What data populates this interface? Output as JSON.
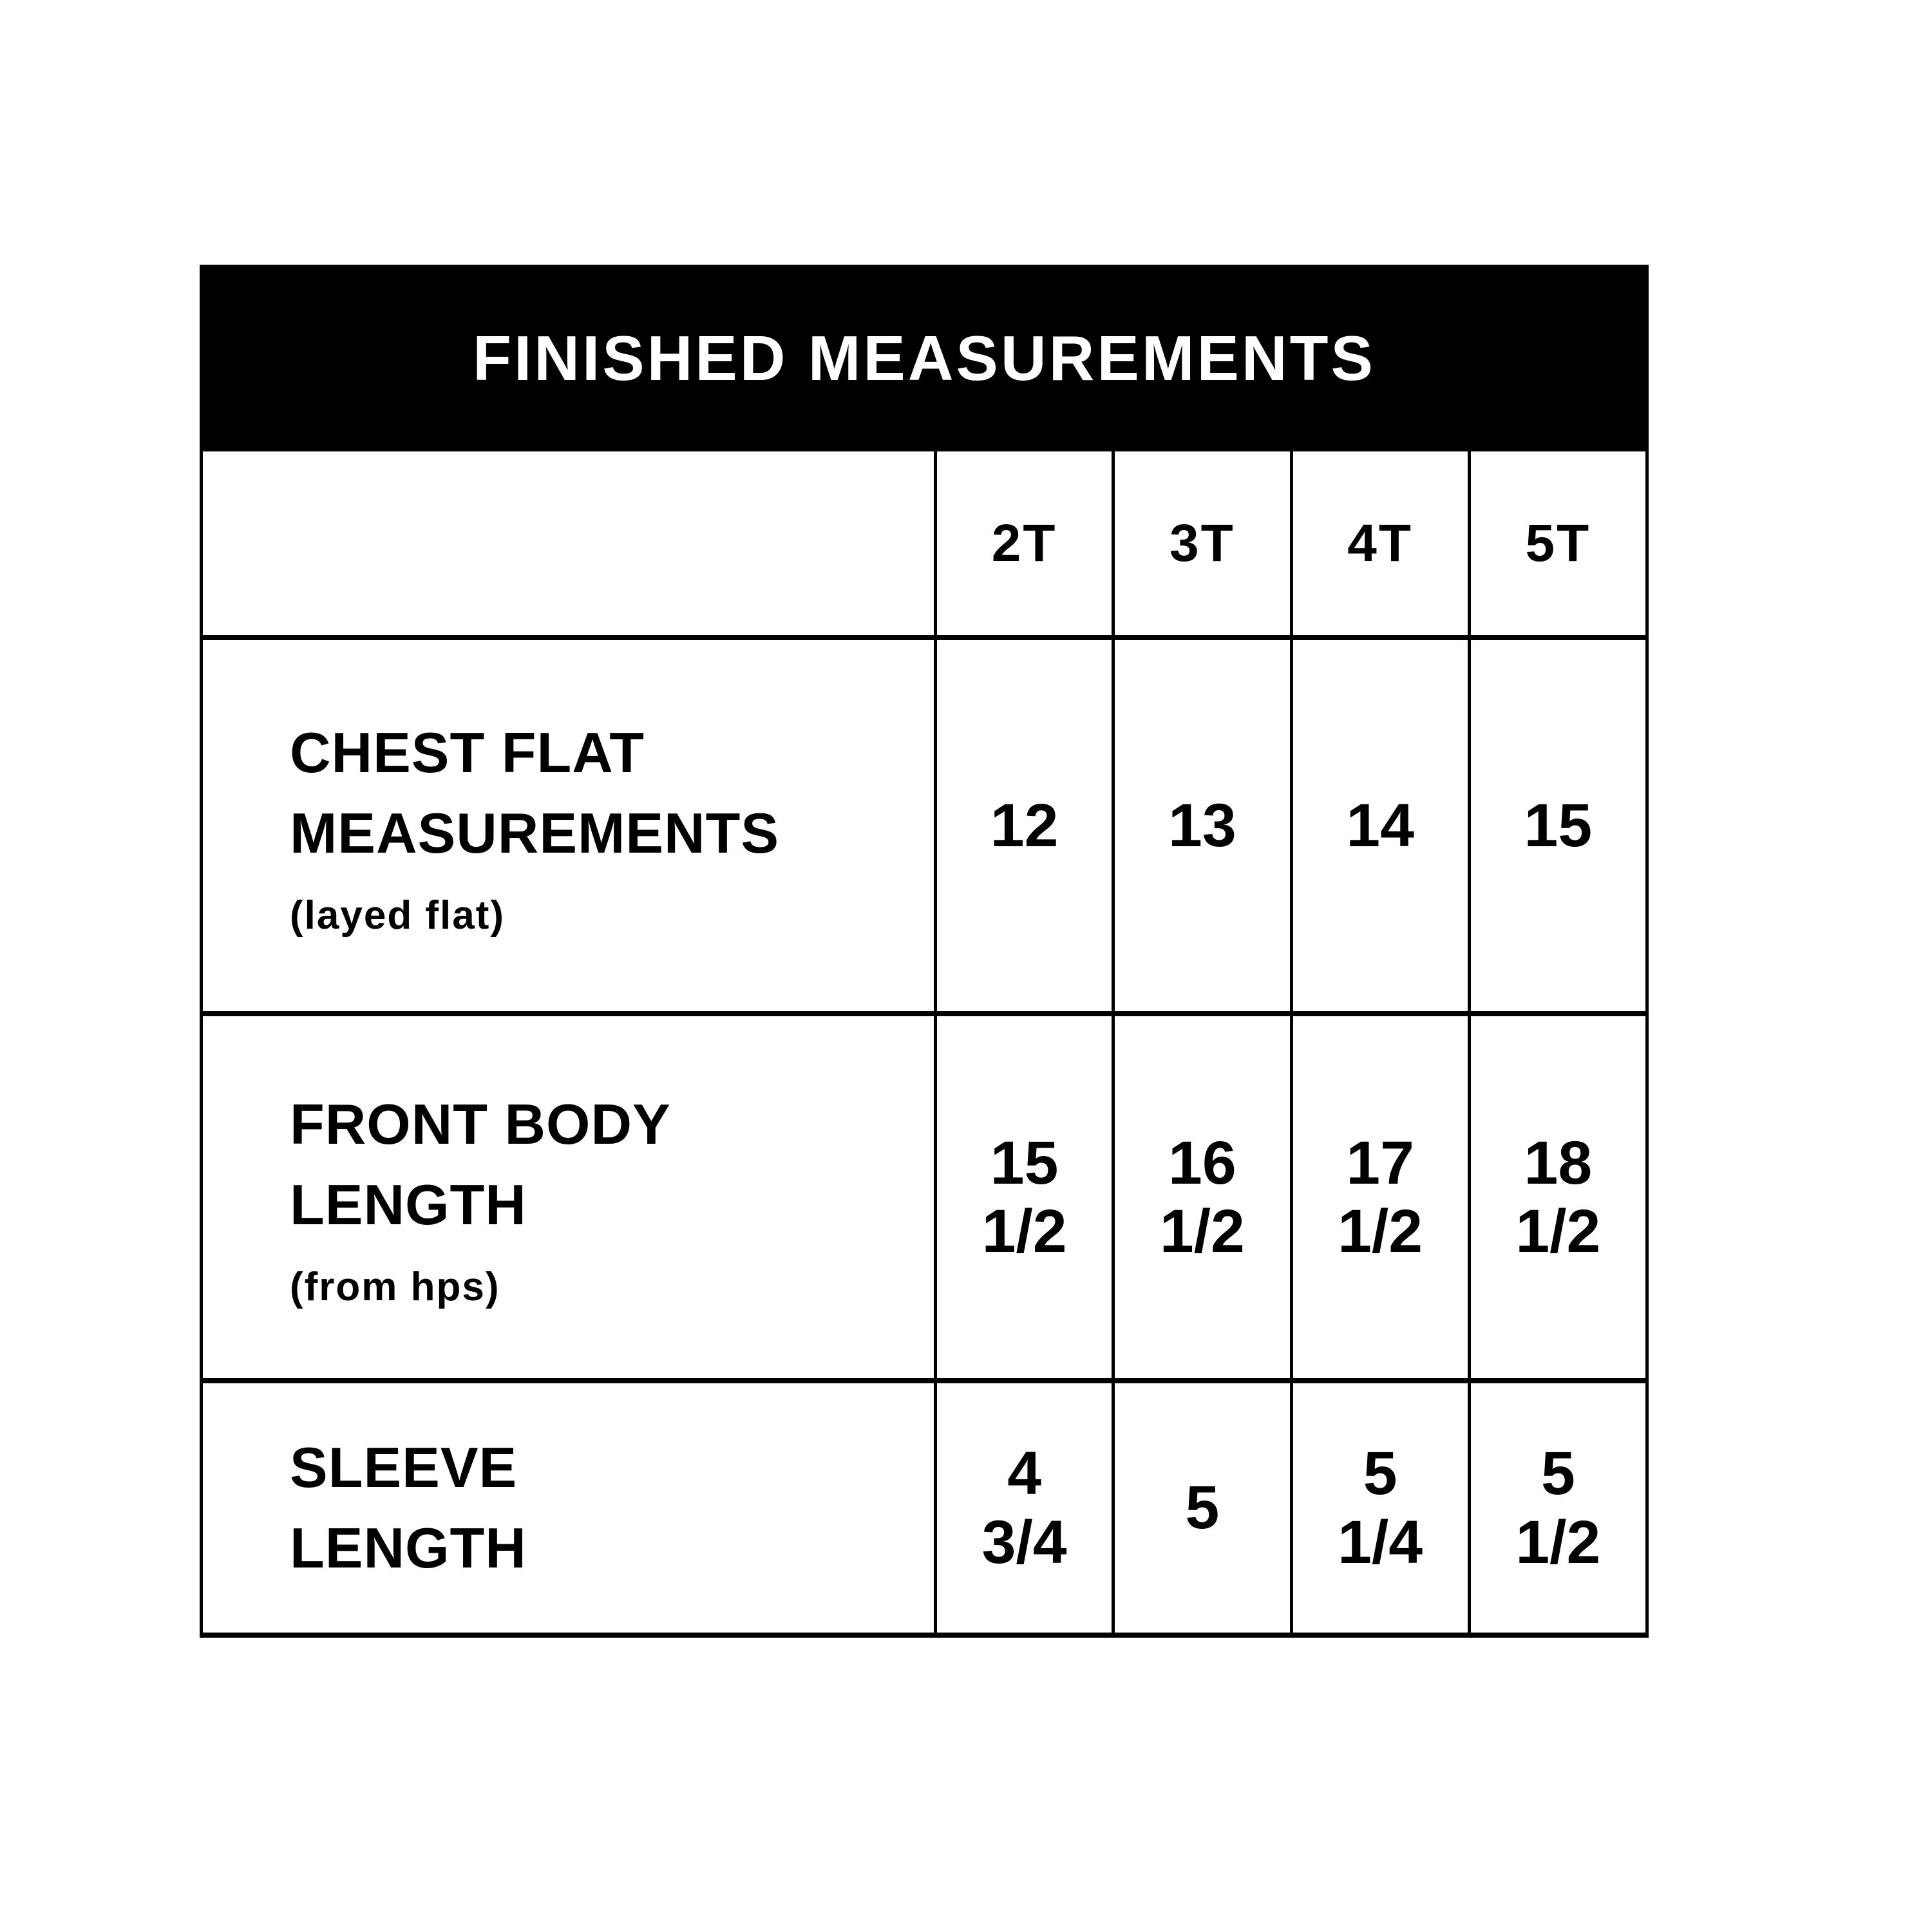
{
  "chart": {
    "title": "FINISHED MEASUREMENTS",
    "columns": [
      "2T",
      "3T",
      "4T",
      "5T"
    ],
    "rows": [
      {
        "label_lines": [
          "CHEST FLAT",
          "MEASUREMENTS"
        ],
        "note": "(layed flat)",
        "values": [
          [
            "12"
          ],
          [
            "13"
          ],
          [
            "14"
          ],
          [
            "15"
          ]
        ]
      },
      {
        "label_lines": [
          "FRONT BODY",
          "LENGTH"
        ],
        "note": "(from hps)",
        "values": [
          [
            "15",
            "1/2"
          ],
          [
            "16",
            "1/2"
          ],
          [
            "17",
            "1/2"
          ],
          [
            "18",
            "1/2"
          ]
        ]
      },
      {
        "label_lines": [
          "SLEEVE",
          "LENGTH"
        ],
        "values": [
          [
            "4",
            "3/4"
          ],
          [
            "5"
          ],
          [
            "5",
            "1/4"
          ],
          [
            "5",
            "1/2"
          ]
        ]
      }
    ],
    "colors": {
      "header_bg": "#000000",
      "header_text": "#ffffff",
      "border": "#000000",
      "text": "#000000",
      "background": "#ffffff"
    }
  },
  "chart_data": {
    "type": "table",
    "title": "FINISHED MEASUREMENTS",
    "columns": [
      "2T",
      "3T",
      "4T",
      "5T"
    ],
    "rows": [
      {
        "label": "CHEST FLAT MEASUREMENTS (layed flat)",
        "values": [
          12,
          13,
          14,
          15
        ]
      },
      {
        "label": "FRONT BODY LENGTH (from hps)",
        "values": [
          15.5,
          16.5,
          17.5,
          18.5
        ]
      },
      {
        "label": "SLEEVE LENGTH",
        "values": [
          4.75,
          5,
          5.25,
          5.5
        ]
      }
    ]
  }
}
